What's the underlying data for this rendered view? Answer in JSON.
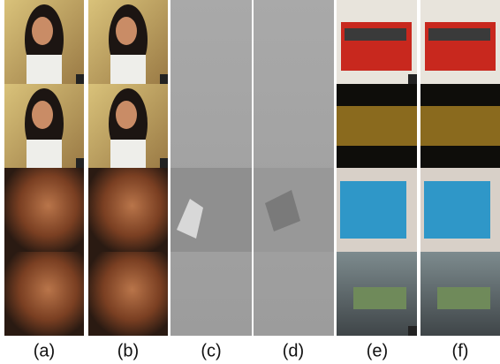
{
  "figure": {
    "labels": [
      "(a)",
      "(b)",
      "(c)",
      "(d)",
      "(e)",
      "(f)"
    ]
  }
}
